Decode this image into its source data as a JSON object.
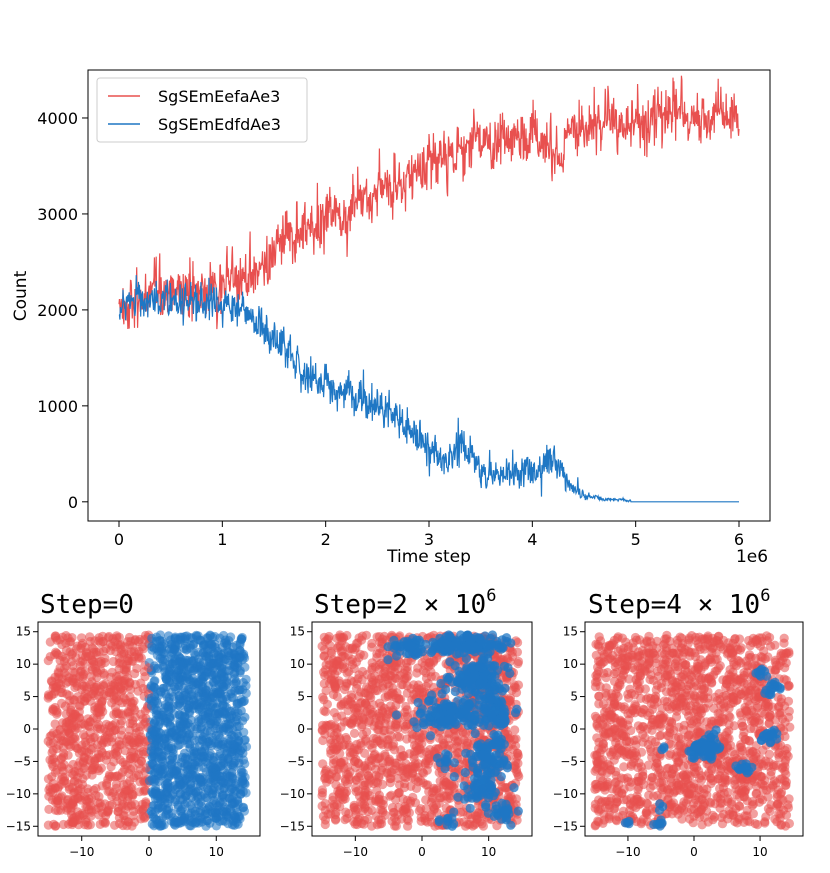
{
  "chart_data": [
    {
      "type": "line",
      "xlabel": "Time step",
      "ylabel": "Count",
      "x_offset_label": "1e6",
      "xlim": [
        -0.3,
        6.3
      ],
      "ylim": [
        -200,
        4500
      ],
      "xticks": [
        0,
        1,
        2,
        3,
        4,
        5,
        6
      ],
      "xtick_labels": [
        "0",
        "1",
        "2",
        "3",
        "4",
        "5",
        "6"
      ],
      "yticks": [
        0,
        1000,
        2000,
        3000,
        4000
      ],
      "ytick_labels": [
        "0",
        "1000",
        "2000",
        "3000",
        "4000"
      ],
      "legend_position": "upper-left",
      "series": [
        {
          "name": "SgSEmEefaAe3",
          "color": "#e8504f",
          "noise": 130,
          "x": [
            0,
            0.5,
            1.0,
            1.2,
            1.4,
            1.6,
            1.8,
            2.0,
            2.2,
            2.4,
            2.6,
            2.8,
            3.0,
            3.2,
            3.4,
            3.5,
            3.6,
            3.8,
            4.0,
            4.15,
            4.25,
            4.4,
            4.6,
            4.8,
            5.0,
            5.2,
            5.4,
            5.6,
            5.8,
            6.0
          ],
          "y": [
            2050,
            2150,
            2250,
            2350,
            2500,
            2700,
            2850,
            2950,
            3050,
            3150,
            3250,
            3350,
            3500,
            3600,
            3700,
            3780,
            3720,
            3800,
            3800,
            3720,
            3600,
            3850,
            3900,
            3950,
            4000,
            4000,
            4050,
            4000,
            4000,
            3950
          ]
        },
        {
          "name": "SgSEmEdfdAe3",
          "color": "#1f77c4",
          "noise": 90,
          "x": [
            0,
            0.5,
            1.0,
            1.2,
            1.4,
            1.6,
            1.8,
            2.0,
            2.2,
            2.4,
            2.6,
            2.8,
            3.0,
            3.2,
            3.35,
            3.5,
            3.7,
            3.9,
            4.1,
            4.2,
            4.3,
            4.4,
            4.5,
            4.7,
            4.9,
            5.0,
            5.5,
            6.0
          ],
          "y": [
            2050,
            2100,
            2050,
            2000,
            1800,
            1550,
            1300,
            1200,
            1150,
            1050,
            950,
            750,
            550,
            450,
            550,
            300,
            250,
            280,
            350,
            450,
            250,
            150,
            60,
            30,
            20,
            0,
            0,
            0
          ]
        }
      ]
    },
    {
      "type": "scatter",
      "title": "Step=0",
      "xlim": [
        -16.5,
        16.5
      ],
      "ylim": [
        -16.5,
        16.5
      ],
      "xticks": [
        -10,
        0,
        10
      ],
      "xtick_labels": [
        "−10",
        "0",
        "10"
      ],
      "yticks": [
        -15,
        -10,
        -5,
        0,
        5,
        10,
        15
      ],
      "ytick_labels": [
        "−15",
        "−10",
        "−5",
        "0",
        "5",
        "10",
        "15"
      ],
      "red_color": "#e8504f",
      "blue_color": "#1f77c4",
      "pattern": "split",
      "split_x": 0,
      "blue_clusters": []
    },
    {
      "type": "scatter",
      "title": "Step=2 × 10",
      "title_superscript": "6",
      "xlim": [
        -16.5,
        16.5
      ],
      "ylim": [
        -16.5,
        16.5
      ],
      "xticks": [
        -10,
        0,
        10
      ],
      "xtick_labels": [
        "−10",
        "0",
        "10"
      ],
      "yticks": [
        -15,
        -10,
        -5,
        0,
        5,
        10,
        15
      ],
      "ytick_labels": [
        "−15",
        "−10",
        "−5",
        "0",
        "5",
        "10",
        "15"
      ],
      "red_color": "#e8504f",
      "blue_color": "#1f77c4",
      "pattern": "clusters",
      "blue_clusters": [
        {
          "x": 6,
          "y": 13,
          "sx": 6,
          "sy": 1.5,
          "n": 140
        },
        {
          "x": -2,
          "y": 12.5,
          "sx": 3,
          "sy": 1.5,
          "n": 40
        },
        {
          "x": 8,
          "y": 8,
          "sx": 4,
          "sy": 3,
          "n": 130
        },
        {
          "x": 4,
          "y": 2.5,
          "sx": 5,
          "sy": 2.5,
          "n": 120
        },
        {
          "x": 11,
          "y": 3,
          "sx": 2.5,
          "sy": 4,
          "n": 80
        },
        {
          "x": 10,
          "y": -4,
          "sx": 3,
          "sy": 2.5,
          "n": 70
        },
        {
          "x": 9,
          "y": -9,
          "sx": 3,
          "sy": 3,
          "n": 60
        },
        {
          "x": 12,
          "y": -13,
          "sx": 2,
          "sy": 1.5,
          "n": 25
        },
        {
          "x": 4,
          "y": -14,
          "sx": 1.5,
          "sy": 1,
          "n": 10
        },
        {
          "x": 3.5,
          "y": -5,
          "sx": 1,
          "sy": 1,
          "n": 10
        }
      ]
    },
    {
      "type": "scatter",
      "title": "Step=4 × 10",
      "title_superscript": "6",
      "xlim": [
        -16.5,
        16.5
      ],
      "ylim": [
        -16.5,
        16.5
      ],
      "xticks": [
        -10,
        0,
        10
      ],
      "xtick_labels": [
        "−10",
        "0",
        "10"
      ],
      "yticks": [
        -15,
        -10,
        -5,
        0,
        5,
        10,
        15
      ],
      "ytick_labels": [
        "−15",
        "−10",
        "−5",
        "0",
        "5",
        "10",
        "15"
      ],
      "red_color": "#e8504f",
      "blue_color": "#1f77c4",
      "pattern": "clusters",
      "blue_clusters": [
        {
          "x": 1.5,
          "y": -3,
          "sx": 2,
          "sy": 1.8,
          "n": 70
        },
        {
          "x": 7.5,
          "y": -6,
          "sx": 1.5,
          "sy": 1,
          "n": 14
        },
        {
          "x": 11.5,
          "y": -1.5,
          "sx": 1.2,
          "sy": 1.5,
          "n": 18
        },
        {
          "x": 12,
          "y": 6,
          "sx": 1.2,
          "sy": 1.5,
          "n": 16
        },
        {
          "x": 10,
          "y": 8.5,
          "sx": 1,
          "sy": 1,
          "n": 8
        },
        {
          "x": -5,
          "y": -14.5,
          "sx": 1.2,
          "sy": 0.5,
          "n": 8
        },
        {
          "x": -10,
          "y": -14.5,
          "sx": 0.6,
          "sy": 0.4,
          "n": 4
        },
        {
          "x": -5,
          "y": -12,
          "sx": 0.5,
          "sy": 0.5,
          "n": 3
        },
        {
          "x": -5,
          "y": -3,
          "sx": 0.5,
          "sy": 0.5,
          "n": 3
        }
      ]
    }
  ]
}
